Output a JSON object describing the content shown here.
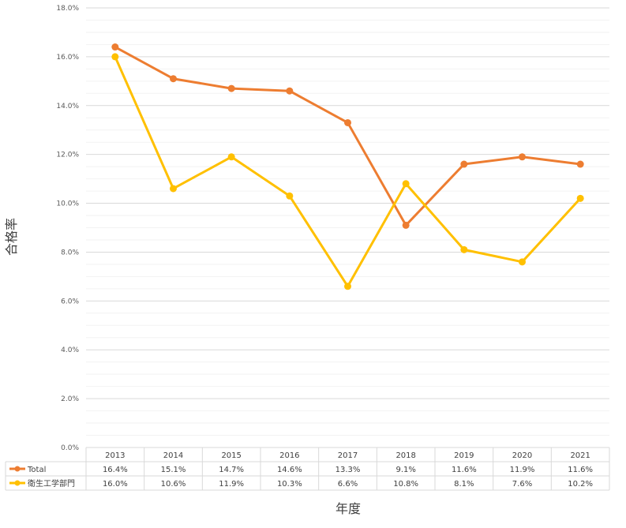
{
  "chart_data": {
    "type": "line",
    "title": "",
    "xlabel": "年度",
    "ylabel": "合格率",
    "ylim": [
      0,
      18
    ],
    "y_tick_labels": [
      "0.0%",
      "2.0%",
      "4.0%",
      "6.0%",
      "8.0%",
      "10.0%",
      "12.0%",
      "14.0%",
      "16.0%",
      "18.0%"
    ],
    "grid": true,
    "legend": "data-table",
    "categories": [
      "2013",
      "2014",
      "2015",
      "2016",
      "2017",
      "2018",
      "2019",
      "2020",
      "2021"
    ],
    "series": [
      {
        "name": "Total",
        "color": "#ED7D31",
        "values": [
          16.4,
          15.1,
          14.7,
          14.6,
          13.3,
          9.1,
          11.6,
          11.9,
          11.6
        ],
        "labels": [
          "16.4%",
          "15.1%",
          "14.7%",
          "14.6%",
          "13.3%",
          "9.1%",
          "11.6%",
          "11.9%",
          "11.6%"
        ]
      },
      {
        "name": "衛生工学部門",
        "color": "#FFC000",
        "values": [
          16.0,
          10.6,
          11.9,
          10.3,
          6.6,
          10.8,
          8.1,
          7.6,
          10.2
        ],
        "labels": [
          "16.0%",
          "10.6%",
          "11.9%",
          "10.3%",
          "6.6%",
          "10.8%",
          "8.1%",
          "7.6%",
          "10.2%"
        ]
      }
    ]
  }
}
